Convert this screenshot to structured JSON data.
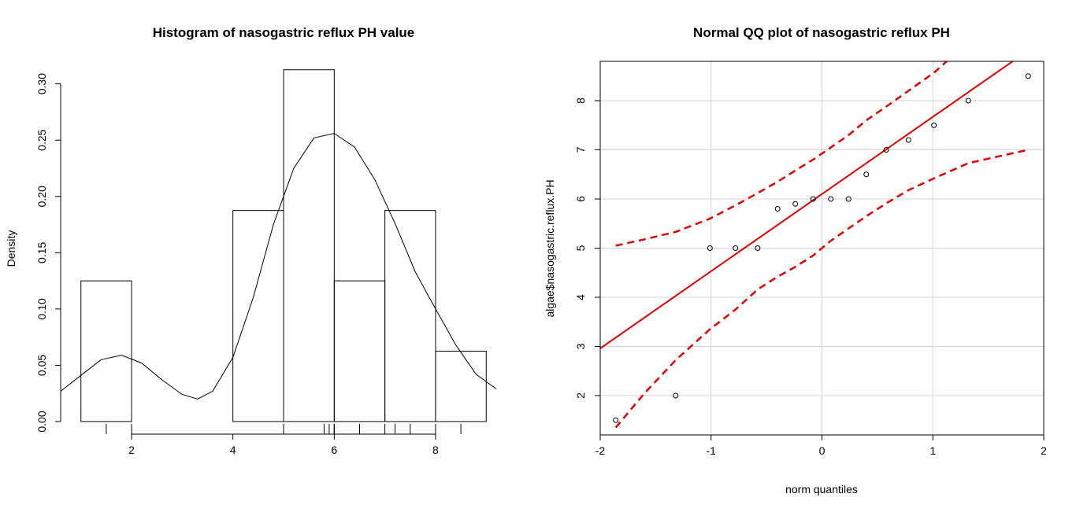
{
  "chart_data": [
    {
      "type": "histogram",
      "title": "Histogram of nasogastric reflux PH value",
      "xlabel": "",
      "ylabel": "Density",
      "xlim": [
        0.6,
        9.4
      ],
      "ylim": [
        0,
        0.32
      ],
      "x_ticks": [
        2,
        4,
        6,
        8
      ],
      "y_ticks": [
        0.0,
        0.05,
        0.1,
        0.15,
        0.2,
        0.25,
        0.3
      ],
      "y_tick_labels": [
        "0.00",
        "0.05",
        "0.10",
        "0.15",
        "0.20",
        "0.25",
        "0.30"
      ],
      "bins": [
        {
          "from": 1,
          "to": 2,
          "density": 0.125
        },
        {
          "from": 2,
          "to": 3,
          "density": 0
        },
        {
          "from": 3,
          "to": 4,
          "density": 0
        },
        {
          "from": 4,
          "to": 5,
          "density": 0.1875
        },
        {
          "from": 5,
          "to": 6,
          "density": 0.3125
        },
        {
          "from": 6,
          "to": 7,
          "density": 0.125
        },
        {
          "from": 7,
          "to": 8,
          "density": 0.1875
        },
        {
          "from": 8,
          "to": 9,
          "density": 0.0625
        }
      ],
      "density_curve": {
        "x": [
          0.6,
          1.0,
          1.4,
          1.8,
          2.2,
          2.6,
          3.0,
          3.3,
          3.6,
          4.0,
          4.4,
          4.8,
          5.2,
          5.6,
          6.0,
          6.4,
          6.8,
          7.2,
          7.6,
          8.0,
          8.4,
          8.8,
          9.2
        ],
        "y": [
          0.027,
          0.041,
          0.055,
          0.059,
          0.052,
          0.037,
          0.024,
          0.02,
          0.027,
          0.057,
          0.11,
          0.175,
          0.225,
          0.252,
          0.256,
          0.244,
          0.215,
          0.176,
          0.133,
          0.1,
          0.068,
          0.042,
          0.029
        ]
      },
      "rug": [
        1.5,
        2.0,
        5.0,
        5.0,
        5.0,
        5.8,
        5.9,
        6.0,
        6.0,
        6.0,
        6.5,
        7.0,
        7.2,
        7.5,
        8.0,
        8.5
      ]
    },
    {
      "type": "scatter",
      "title": "Normal QQ plot of nasogastric reflux PH",
      "xlabel": "norm quantiles",
      "ylabel": "algae$nasogastric.reflux.PH",
      "xlim": [
        -2.0,
        2.0
      ],
      "ylim": [
        1.2,
        8.8
      ],
      "x_ticks": [
        -2,
        -1,
        0,
        1,
        2
      ],
      "y_ticks": [
        2,
        3,
        4,
        5,
        6,
        7,
        8
      ],
      "grid": true,
      "points": [
        {
          "x": -1.86,
          "y": 1.5
        },
        {
          "x": -1.32,
          "y": 2.0
        },
        {
          "x": -1.01,
          "y": 5.0
        },
        {
          "x": -0.78,
          "y": 5.0
        },
        {
          "x": -0.58,
          "y": 5.0
        },
        {
          "x": -0.4,
          "y": 5.8
        },
        {
          "x": -0.24,
          "y": 5.9
        },
        {
          "x": -0.08,
          "y": 6.0
        },
        {
          "x": 0.08,
          "y": 6.0
        },
        {
          "x": 0.24,
          "y": 6.0
        },
        {
          "x": 0.4,
          "y": 6.5
        },
        {
          "x": 0.58,
          "y": 7.0
        },
        {
          "x": 0.78,
          "y": 7.2
        },
        {
          "x": 1.01,
          "y": 7.5
        },
        {
          "x": 1.32,
          "y": 8.0
        },
        {
          "x": 1.86,
          "y": 8.5
        }
      ],
      "reference_line": {
        "intercept": 6.1,
        "slope": 1.57
      },
      "envelope_upper": {
        "x": [
          -1.86,
          -1.6,
          -1.32,
          -1.01,
          -0.78,
          -0.58,
          -0.4,
          -0.24,
          -0.08,
          0.08,
          0.24,
          0.4,
          0.58,
          0.78,
          1.01,
          1.2
        ],
        "y": [
          5.05,
          5.18,
          5.33,
          5.6,
          5.87,
          6.12,
          6.35,
          6.58,
          6.8,
          7.05,
          7.3,
          7.6,
          7.88,
          8.2,
          8.57,
          8.95
        ]
      },
      "envelope_lower": {
        "x": [
          -1.86,
          -1.6,
          -1.32,
          -1.01,
          -0.78,
          -0.58,
          -0.4,
          -0.24,
          -0.08,
          0.08,
          0.24,
          0.4,
          0.58,
          0.78,
          1.01,
          1.32,
          1.86
        ],
        "y": [
          1.35,
          2.05,
          2.72,
          3.35,
          3.75,
          4.16,
          4.42,
          4.62,
          4.85,
          5.15,
          5.4,
          5.65,
          5.91,
          6.18,
          6.42,
          6.73,
          7.0
        ]
      },
      "colors": {
        "line": "#e00000",
        "grid": "#d3d3d3"
      }
    }
  ]
}
